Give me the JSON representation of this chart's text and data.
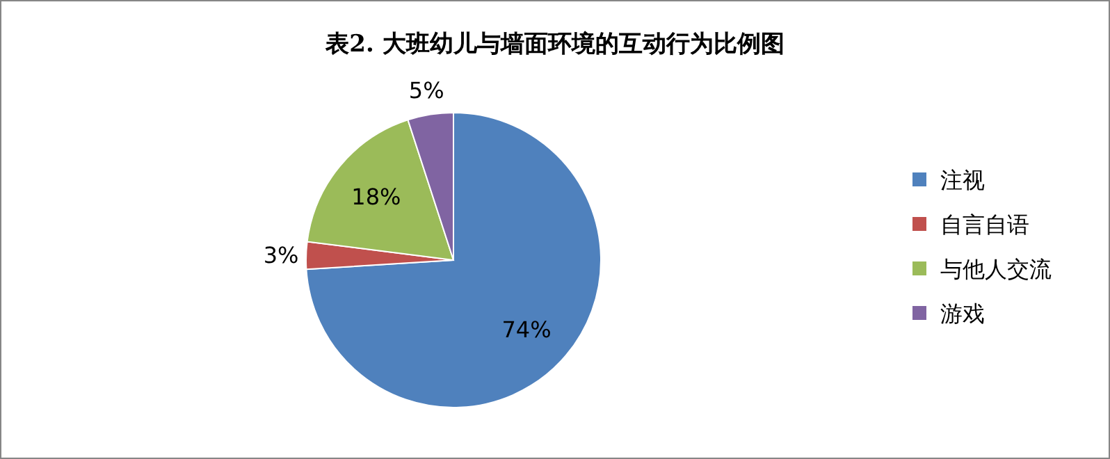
{
  "chart_data": {
    "type": "pie",
    "title": "表2. 大班幼儿与墙面环境的互动行为比例图",
    "categories": [
      "注视",
      "自言自语",
      "与他人交流",
      "游戏"
    ],
    "values": [
      74,
      3,
      18,
      5
    ],
    "colors": [
      "#4f81bd",
      "#c0504d",
      "#9bbb59",
      "#8064a2"
    ],
    "value_labels": [
      "74%",
      "3%",
      "18%",
      "5%"
    ],
    "legend": "right"
  }
}
